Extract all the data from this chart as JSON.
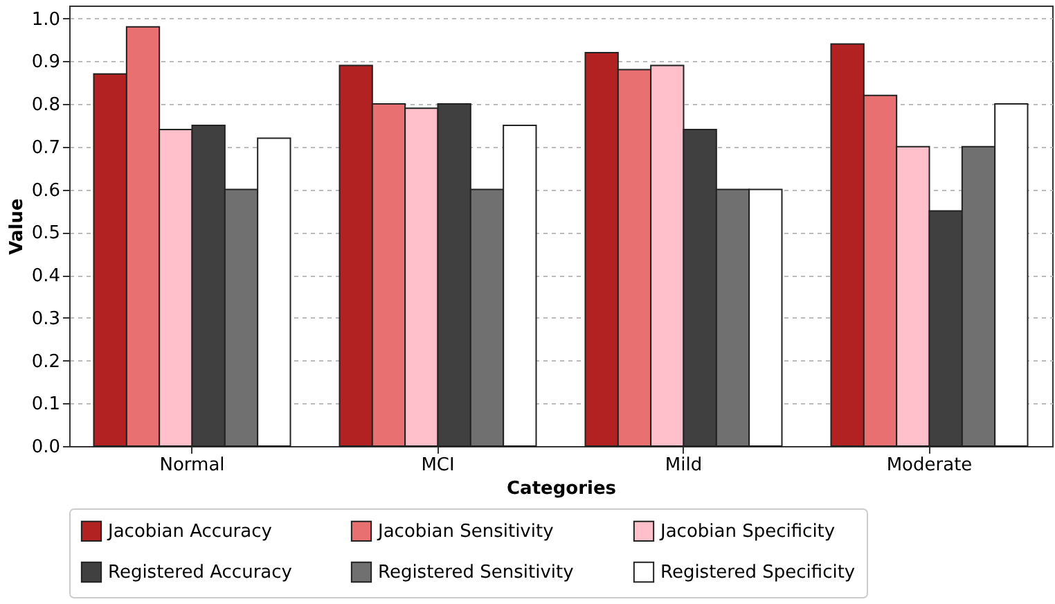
{
  "chart_data": {
    "type": "bar",
    "xlabel": "Categories",
    "ylabel": "Value",
    "categories": [
      "Normal",
      "MCI",
      "Mild",
      "Moderate"
    ],
    "series": [
      {
        "name": "Jacobian Accuracy",
        "color": "#b22222",
        "values": [
          0.87,
          0.89,
          0.92,
          0.94
        ]
      },
      {
        "name": "Jacobian Sensitivity",
        "color": "#e87070",
        "values": [
          0.98,
          0.8,
          0.88,
          0.82
        ]
      },
      {
        "name": "Jacobian Specificity",
        "color": "#ffc0cb",
        "values": [
          0.74,
          0.79,
          0.89,
          0.7
        ]
      },
      {
        "name": "Registered Accuracy",
        "color": "#404040",
        "values": [
          0.75,
          0.8,
          0.74,
          0.55
        ]
      },
      {
        "name": "Registered Sensitivity",
        "color": "#707070",
        "values": [
          0.6,
          0.6,
          0.6,
          0.7
        ]
      },
      {
        "name": "Registered Specificity",
        "color": "#ffffff",
        "values": [
          0.72,
          0.75,
          0.6,
          0.8
        ]
      }
    ],
    "ylim": [
      0,
      1.03
    ],
    "yticks": [
      {
        "value": 0,
        "label": "0.0"
      },
      0.1,
      0.2,
      0.3,
      0.4,
      0.5,
      0.6,
      0.7,
      0.8,
      0.9,
      {
        "value": 1,
        "label": "1.0"
      }
    ],
    "grid": "y",
    "legend": "bottom"
  }
}
